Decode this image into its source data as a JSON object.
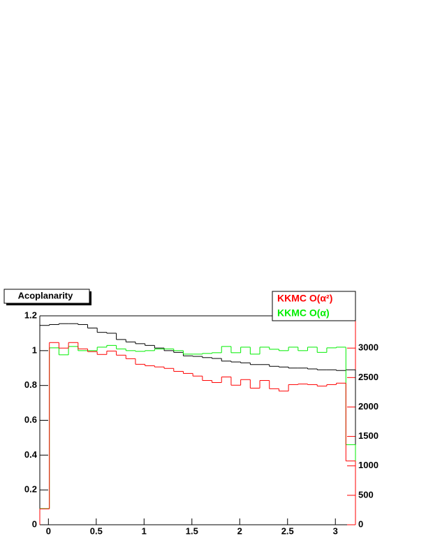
{
  "chart_data": {
    "type": "histogram",
    "title": "Acoplanarity",
    "bins": [
      -0.09,
      0.01,
      0.11,
      0.21,
      0.31,
      0.41,
      0.51,
      0.61,
      0.71,
      0.81,
      0.91,
      1.01,
      1.11,
      1.21,
      1.31,
      1.41,
      1.51,
      1.61,
      1.71,
      1.81,
      1.91,
      2.01,
      2.11,
      2.21,
      2.31,
      2.41,
      2.51,
      2.61,
      2.71,
      2.81,
      2.91,
      3.01,
      3.11,
      3.21
    ],
    "xlim": [
      -0.09,
      3.21
    ],
    "xticks": [
      0,
      0.5,
      1,
      1.5,
      2,
      2.5,
      3
    ],
    "ylim": [
      0,
      1.2
    ],
    "yticks": [
      0,
      0.2,
      0.4,
      0.6,
      0.8,
      1,
      1.2
    ],
    "y2lim": [
      0,
      3548
    ],
    "y2ticks": [
      0,
      500,
      1000,
      1500,
      2000,
      2500,
      3000
    ],
    "y2_color": "#ff0000",
    "series": [
      {
        "color": "#000000",
        "values": [
          1.145,
          1.15,
          1.155,
          1.155,
          1.15,
          1.13,
          1.105,
          1.1,
          1.064,
          1.05,
          1.04,
          1.03,
          1.015,
          1.0,
          0.99,
          0.97,
          0.967,
          0.96,
          0.955,
          0.94,
          0.935,
          0.93,
          0.92,
          0.92,
          0.91,
          0.906,
          0.9,
          0.9,
          0.895,
          0.89,
          0.89,
          0.886,
          0.89
        ]
      },
      {
        "name": "KKMC O(α)",
        "color": "#00ee00",
        "values": [
          0.093,
          1.016,
          0.976,
          1.024,
          1.0,
          1.0,
          1.02,
          1.03,
          1.01,
          1.0,
          0.996,
          1.0,
          1.01,
          1.01,
          1.0,
          0.98,
          0.98,
          0.984,
          0.988,
          1.024,
          0.988,
          1.02,
          0.98,
          1.02,
          1.008,
          1.0,
          1.02,
          1.0,
          1.02,
          0.99,
          1.016,
          1.02,
          0.46
        ]
      },
      {
        "name": "KKMC O(α²)",
        "color": "#ff0000",
        "axis": "y2",
        "values": [
          270,
          3094,
          3000,
          3094,
          2987,
          2940,
          2892,
          2950,
          2880,
          2820,
          2725,
          2700,
          2680,
          2655,
          2605,
          2570,
          2525,
          2450,
          2415,
          2510,
          2370,
          2465,
          2320,
          2450,
          2310,
          2270,
          2380,
          2390,
          2380,
          2355,
          2380,
          2405,
          1083
        ]
      }
    ]
  }
}
